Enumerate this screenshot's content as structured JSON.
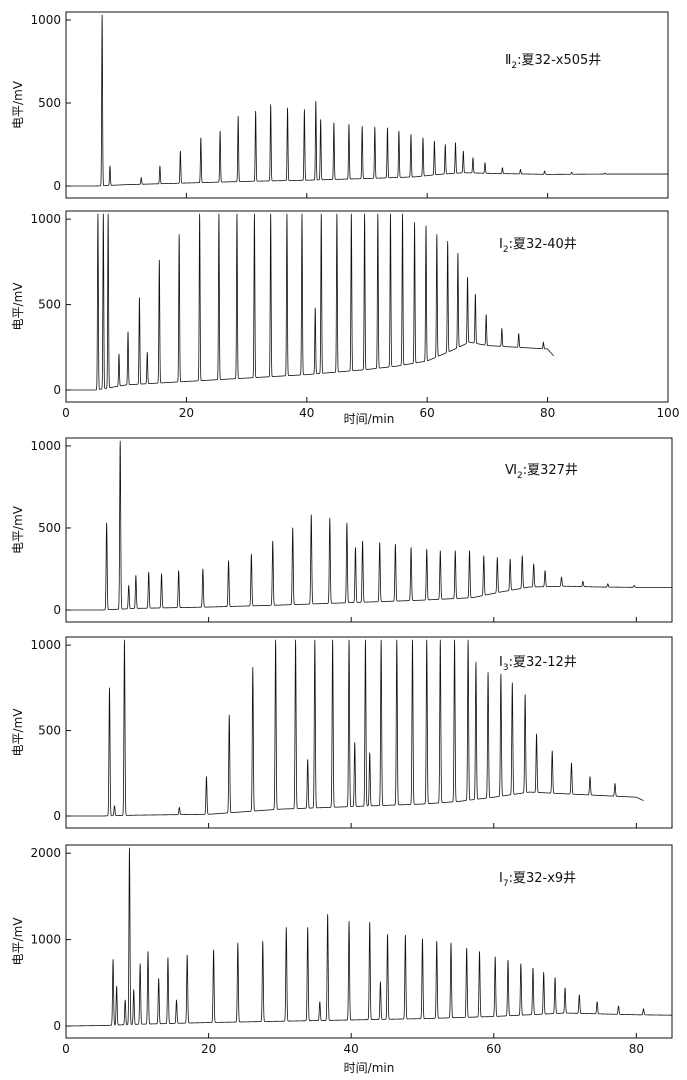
{
  "figure": {
    "ylabel": "电平/mV",
    "xlabel_top": "",
    "xlabel_bottom": "时间/min"
  },
  "colors": {
    "trace": "#111111",
    "frame": "#111111",
    "background": "#ffffff"
  },
  "chart_data": [
    {
      "type": "line",
      "title": "Ⅱ₂:夏32-x505井",
      "label_roman": "Ⅱ",
      "label_sub": "2",
      "label_rest": ":夏32-x505井",
      "xlim": [
        0,
        100
      ],
      "ylim": [
        0,
        1030
      ],
      "yticks": [
        0,
        500,
        1000
      ],
      "ytick_labels": [
        "0",
        "500",
        "1000"
      ],
      "xticks": [
        0,
        20,
        40,
        60,
        80,
        100
      ],
      "xtick_labels": [],
      "baseline": [
        [
          0,
          0
        ],
        [
          5,
          0
        ],
        [
          10,
          8
        ],
        [
          20,
          18
        ],
        [
          30,
          28
        ],
        [
          40,
          35
        ],
        [
          50,
          45
        ],
        [
          58,
          55
        ],
        [
          62,
          70
        ],
        [
          66,
          80
        ],
        [
          72,
          75
        ],
        [
          80,
          70
        ],
        [
          90,
          72
        ],
        [
          100,
          72
        ]
      ],
      "peaks": [
        [
          6.0,
          1030
        ],
        [
          7.3,
          120
        ],
        [
          12.5,
          50
        ],
        [
          15.6,
          120
        ],
        [
          19.0,
          210
        ],
        [
          22.4,
          290
        ],
        [
          25.6,
          330
        ],
        [
          28.6,
          420
        ],
        [
          31.5,
          450
        ],
        [
          34.0,
          490
        ],
        [
          36.8,
          470
        ],
        [
          39.6,
          460
        ],
        [
          41.5,
          510
        ],
        [
          42.3,
          400
        ],
        [
          44.5,
          380
        ],
        [
          47.0,
          370
        ],
        [
          49.2,
          360
        ],
        [
          51.3,
          355
        ],
        [
          53.4,
          350
        ],
        [
          55.3,
          330
        ],
        [
          57.3,
          310
        ],
        [
          59.3,
          290
        ],
        [
          61.2,
          270
        ],
        [
          63.0,
          250
        ],
        [
          64.7,
          260
        ],
        [
          66.0,
          210
        ],
        [
          67.6,
          170
        ],
        [
          69.6,
          140
        ],
        [
          72.5,
          110
        ],
        [
          75.5,
          100
        ],
        [
          79.5,
          90
        ],
        [
          84.0,
          82
        ],
        [
          89.5,
          78
        ]
      ]
    },
    {
      "type": "line",
      "title": "Ⅰ₂:夏32-40井",
      "label_roman": "Ⅰ",
      "label_sub": "2",
      "label_rest": ":夏32-40井",
      "xlim": [
        0,
        100
      ],
      "ylim": [
        0,
        1030
      ],
      "yticks": [
        0,
        500,
        1000
      ],
      "ytick_labels": [
        "0",
        "500",
        "1000"
      ],
      "xticks": [
        0,
        20,
        40,
        60,
        80,
        100
      ],
      "xtick_labels": [
        "0",
        "20",
        "40",
        "60",
        "80",
        "100"
      ],
      "baseline": [
        [
          0,
          0
        ],
        [
          5,
          0
        ],
        [
          10,
          30
        ],
        [
          20,
          50
        ],
        [
          30,
          70
        ],
        [
          40,
          90
        ],
        [
          50,
          120
        ],
        [
          55,
          140
        ],
        [
          60,
          170
        ],
        [
          64,
          230
        ],
        [
          67,
          280
        ],
        [
          70,
          260
        ],
        [
          75,
          250
        ],
        [
          80,
          240
        ],
        [
          81,
          200
        ]
      ],
      "peaks": [
        [
          5.3,
          1030
        ],
        [
          6.2,
          1030
        ],
        [
          7.0,
          1030
        ],
        [
          8.8,
          210
        ],
        [
          10.3,
          340
        ],
        [
          12.2,
          540
        ],
        [
          13.5,
          220
        ],
        [
          15.5,
          760
        ],
        [
          18.8,
          910
        ],
        [
          22.2,
          1030
        ],
        [
          25.4,
          1030
        ],
        [
          28.4,
          1030
        ],
        [
          31.3,
          1030
        ],
        [
          34.0,
          1030
        ],
        [
          36.7,
          1030
        ],
        [
          39.2,
          1030
        ],
        [
          41.4,
          480
        ],
        [
          42.4,
          1030
        ],
        [
          45.0,
          1030
        ],
        [
          47.4,
          1030
        ],
        [
          49.6,
          1030
        ],
        [
          51.8,
          1030
        ],
        [
          53.9,
          1030
        ],
        [
          55.9,
          1030
        ],
        [
          57.9,
          980
        ],
        [
          59.8,
          960
        ],
        [
          61.6,
          910
        ],
        [
          63.4,
          870
        ],
        [
          65.1,
          800
        ],
        [
          66.7,
          660
        ],
        [
          68.0,
          560
        ],
        [
          69.8,
          440
        ],
        [
          72.4,
          360
        ],
        [
          75.2,
          330
        ],
        [
          79.3,
          280
        ]
      ]
    },
    {
      "type": "line",
      "title": "Ⅵ₂:夏327井",
      "label_roman": "Ⅵ",
      "label_sub": "2",
      "label_rest": ":夏327井",
      "xlim": [
        0,
        85
      ],
      "ylim": [
        0,
        1030
      ],
      "yticks": [
        0,
        500,
        1000
      ],
      "ytick_labels": [
        "0",
        "500",
        "1000"
      ],
      "xticks": [
        0,
        20,
        40,
        60,
        80
      ],
      "xtick_labels": [],
      "baseline": [
        [
          0,
          0
        ],
        [
          5,
          0
        ],
        [
          10,
          10
        ],
        [
          20,
          18
        ],
        [
          30,
          30
        ],
        [
          40,
          45
        ],
        [
          50,
          60
        ],
        [
          57,
          75
        ],
        [
          61,
          110
        ],
        [
          65,
          140
        ],
        [
          70,
          145
        ],
        [
          75,
          140
        ],
        [
          80,
          138
        ],
        [
          85,
          138
        ]
      ],
      "peaks": [
        [
          5.7,
          530
        ],
        [
          7.6,
          1030
        ],
        [
          8.8,
          150
        ],
        [
          9.8,
          210
        ],
        [
          11.6,
          230
        ],
        [
          13.4,
          220
        ],
        [
          15.8,
          240
        ],
        [
          19.2,
          250
        ],
        [
          22.8,
          300
        ],
        [
          26.0,
          340
        ],
        [
          29.0,
          420
        ],
        [
          31.8,
          500
        ],
        [
          34.4,
          580
        ],
        [
          37.0,
          560
        ],
        [
          39.4,
          530
        ],
        [
          40.6,
          380
        ],
        [
          41.6,
          420
        ],
        [
          44.0,
          410
        ],
        [
          46.2,
          400
        ],
        [
          48.4,
          380
        ],
        [
          50.6,
          370
        ],
        [
          52.5,
          360
        ],
        [
          54.6,
          360
        ],
        [
          56.6,
          360
        ],
        [
          58.6,
          330
        ],
        [
          60.5,
          320
        ],
        [
          62.3,
          310
        ],
        [
          64.0,
          330
        ],
        [
          65.6,
          280
        ],
        [
          67.2,
          240
        ],
        [
          69.5,
          200
        ],
        [
          72.5,
          175
        ],
        [
          76.0,
          160
        ],
        [
          79.7,
          150
        ]
      ]
    },
    {
      "type": "line",
      "title": "Ⅰ₃:夏32-12井",
      "label_roman": "Ⅰ",
      "label_sub": "3",
      "label_rest": ":夏32-12井",
      "xlim": [
        0,
        85
      ],
      "ylim": [
        0,
        1030
      ],
      "yticks": [
        0,
        500,
        1000
      ],
      "ytick_labels": [
        "0",
        "500",
        "1000"
      ],
      "xticks": [
        0,
        20,
        40,
        60,
        80
      ],
      "xtick_labels": [],
      "baseline": [
        [
          0,
          0
        ],
        [
          5,
          0
        ],
        [
          10,
          5
        ],
        [
          20,
          10
        ],
        [
          25,
          25
        ],
        [
          30,
          40
        ],
        [
          40,
          55
        ],
        [
          50,
          70
        ],
        [
          55,
          85
        ],
        [
          60,
          110
        ],
        [
          65,
          140
        ],
        [
          70,
          130
        ],
        [
          75,
          120
        ],
        [
          80,
          110
        ],
        [
          81,
          90
        ]
      ],
      "peaks": [
        [
          6.1,
          750
        ],
        [
          6.8,
          60
        ],
        [
          8.2,
          1030
        ],
        [
          15.9,
          50
        ],
        [
          19.7,
          230
        ],
        [
          22.9,
          590
        ],
        [
          26.2,
          870
        ],
        [
          29.4,
          1030
        ],
        [
          32.2,
          1030
        ],
        [
          33.9,
          330
        ],
        [
          34.9,
          1030
        ],
        [
          37.4,
          1030
        ],
        [
          39.7,
          1030
        ],
        [
          40.5,
          430
        ],
        [
          42.0,
          1030
        ],
        [
          42.6,
          370
        ],
        [
          44.2,
          1030
        ],
        [
          46.4,
          1030
        ],
        [
          48.6,
          1030
        ],
        [
          50.6,
          1030
        ],
        [
          52.5,
          1030
        ],
        [
          54.5,
          1030
        ],
        [
          56.4,
          1030
        ],
        [
          57.5,
          900
        ],
        [
          59.2,
          840
        ],
        [
          61.0,
          830
        ],
        [
          62.6,
          780
        ],
        [
          64.4,
          710
        ],
        [
          66.0,
          480
        ],
        [
          68.2,
          380
        ],
        [
          70.9,
          310
        ],
        [
          73.5,
          230
        ],
        [
          77.0,
          190
        ]
      ]
    },
    {
      "type": "line",
      "title": "Ⅰ₇:夏32-x9井",
      "label_roman": "Ⅰ",
      "label_sub": "7",
      "label_rest": ":夏32-x9井",
      "xlim": [
        0,
        85
      ],
      "ylim": [
        0,
        2060
      ],
      "yticks": [
        0,
        1000,
        2000
      ],
      "ytick_labels": [
        "0",
        "1000",
        "2000"
      ],
      "xticks": [
        0,
        20,
        40,
        60,
        80
      ],
      "xtick_labels": [
        "0",
        "20",
        "40",
        "60",
        "80"
      ],
      "baseline": [
        [
          0,
          0
        ],
        [
          5,
          5
        ],
        [
          10,
          20
        ],
        [
          20,
          40
        ],
        [
          30,
          55
        ],
        [
          40,
          70
        ],
        [
          50,
          85
        ],
        [
          60,
          110
        ],
        [
          65,
          130
        ],
        [
          70,
          150
        ],
        [
          75,
          140
        ],
        [
          80,
          130
        ],
        [
          85,
          125
        ]
      ],
      "peaks": [
        [
          6.6,
          770
        ],
        [
          7.1,
          460
        ],
        [
          8.3,
          300
        ],
        [
          8.9,
          2060
        ],
        [
          9.5,
          420
        ],
        [
          10.4,
          720
        ],
        [
          11.5,
          860
        ],
        [
          13.0,
          550
        ],
        [
          14.3,
          790
        ],
        [
          15.5,
          300
        ],
        [
          17.0,
          820
        ],
        [
          20.7,
          880
        ],
        [
          24.1,
          960
        ],
        [
          27.6,
          980
        ],
        [
          30.9,
          1140
        ],
        [
          33.9,
          1140
        ],
        [
          35.6,
          280
        ],
        [
          36.7,
          1290
        ],
        [
          39.7,
          1210
        ],
        [
          42.6,
          1200
        ],
        [
          44.1,
          510
        ],
        [
          45.1,
          1060
        ],
        [
          47.6,
          1050
        ],
        [
          50.0,
          1010
        ],
        [
          52.0,
          980
        ],
        [
          54.0,
          960
        ],
        [
          56.2,
          900
        ],
        [
          58.0,
          860
        ],
        [
          60.2,
          800
        ],
        [
          62.0,
          760
        ],
        [
          63.8,
          720
        ],
        [
          65.5,
          670
        ],
        [
          67.0,
          620
        ],
        [
          68.6,
          560
        ],
        [
          70.0,
          440
        ],
        [
          72.0,
          360
        ],
        [
          74.5,
          280
        ],
        [
          77.5,
          230
        ],
        [
          81.0,
          200
        ]
      ]
    }
  ]
}
